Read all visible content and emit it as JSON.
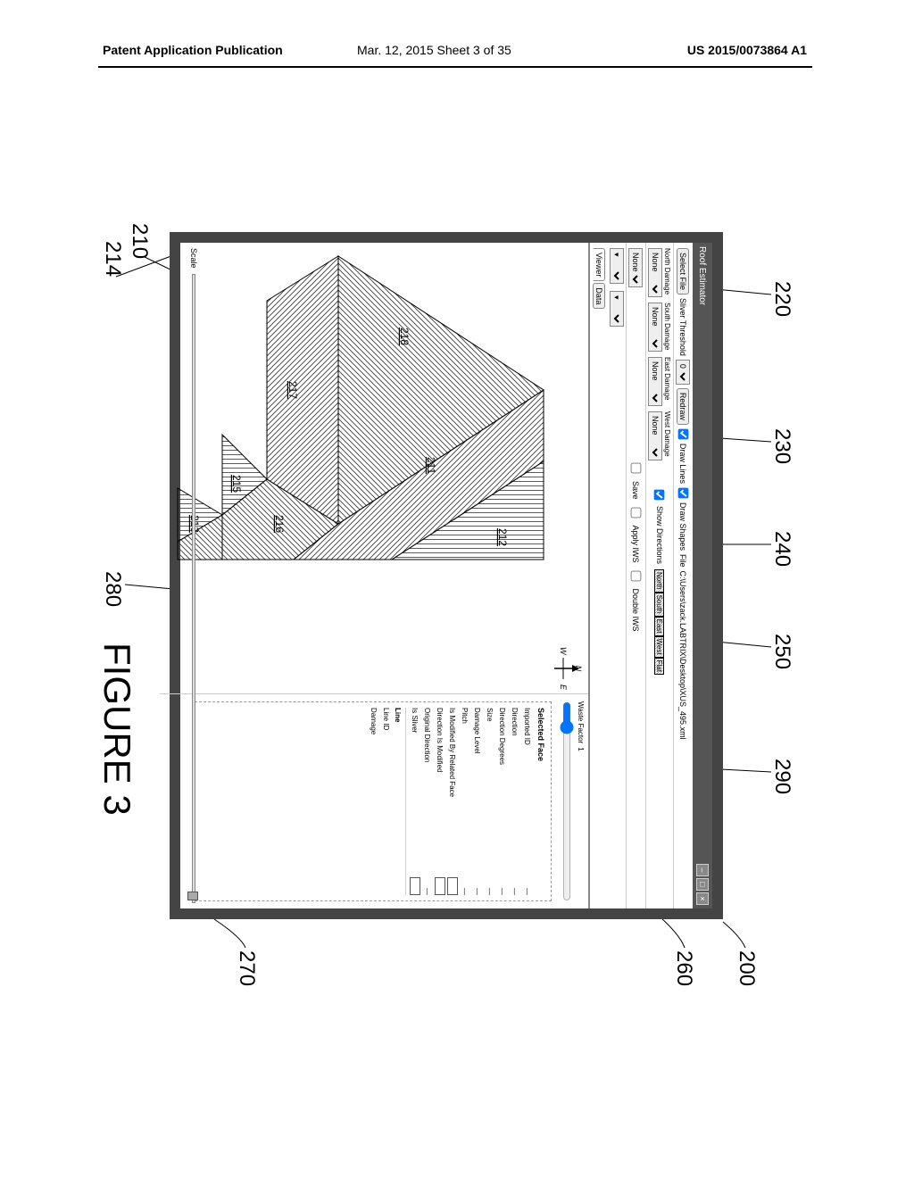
{
  "header": {
    "left": "Patent Application Publication",
    "center": "Mar. 12, 2015  Sheet 3 of 35",
    "right": "US 2015/0073864 A1"
  },
  "figure": {
    "label": "FIGURE 3",
    "callouts": {
      "c200": "200",
      "c210": "210",
      "c214": "214",
      "c220": "220",
      "c230": "230",
      "c240": "240",
      "c250": "250",
      "c260": "260",
      "c270": "270",
      "c280": "280",
      "c290": "290"
    },
    "face_labels": {
      "f211": "211",
      "f212": "212",
      "f213": "213",
      "f215": "215",
      "f216": "216",
      "f217": "217",
      "f218": "218"
    }
  },
  "app": {
    "titlebar": {
      "title": "Roof Estimator",
      "min": "–",
      "max": "□",
      "close": "×"
    },
    "toolbar1": {
      "select_file": "Select File",
      "sliver_threshold": "Sliver Threshold",
      "sliver_val": "0",
      "redraw": "Redraw",
      "draw_lines": "Draw Lines",
      "draw_shapes": "Draw Shapes",
      "file_prefix": "File",
      "file_path": "C:\\Users\\zack.LABTRIX\\Desktop\\XUS_495.xml"
    },
    "toolbar2": {
      "n_lab": "North Damage",
      "s_lab": "South Damage",
      "e_lab": "East Damage",
      "w_lab": "West Damage",
      "none": "None",
      "show_directions": "Show Directions",
      "dir_n": "North",
      "dir_s": "South",
      "dir_e": "East",
      "dir_w": "West",
      "dir_flat": "Flat"
    },
    "toolbar3": {
      "sel_none": "None",
      "save": "Save",
      "apply_iws": "Apply IWS",
      "double_iws": "Double IWS"
    },
    "toolbar4": {
      "viewer": "Viewer",
      "data": "Data"
    },
    "compass": {
      "n": "N",
      "w": "W",
      "e": "E"
    },
    "side": {
      "waste_factor": "Waste Factor",
      "waste_val": "1",
      "title": "Selected Face",
      "rows": [
        {
          "k": "Imported ID",
          "t": "dash"
        },
        {
          "k": "Direction",
          "t": "dash"
        },
        {
          "k": "Direction Degrees",
          "t": "dash"
        },
        {
          "k": "Size",
          "t": "dash"
        },
        {
          "k": "Damage Level",
          "t": "dash"
        },
        {
          "k": "Pitch",
          "t": "dash"
        },
        {
          "k": "Is Modified By Related Face",
          "t": "box"
        },
        {
          "k": "Direction Is Modified",
          "t": "box"
        },
        {
          "k": "Original Direction",
          "t": "dash"
        },
        {
          "k": "Is Sliver",
          "t": "box"
        }
      ],
      "line_section": "Line",
      "line_rows": [
        {
          "k": "Line ID",
          "t": "blank"
        },
        {
          "k": "Damage",
          "t": "blank"
        }
      ]
    },
    "bottom": {
      "scale": "Scale"
    }
  },
  "colors": {
    "border": "#444444",
    "titlebar": "#555555",
    "hatch": "#333333"
  }
}
